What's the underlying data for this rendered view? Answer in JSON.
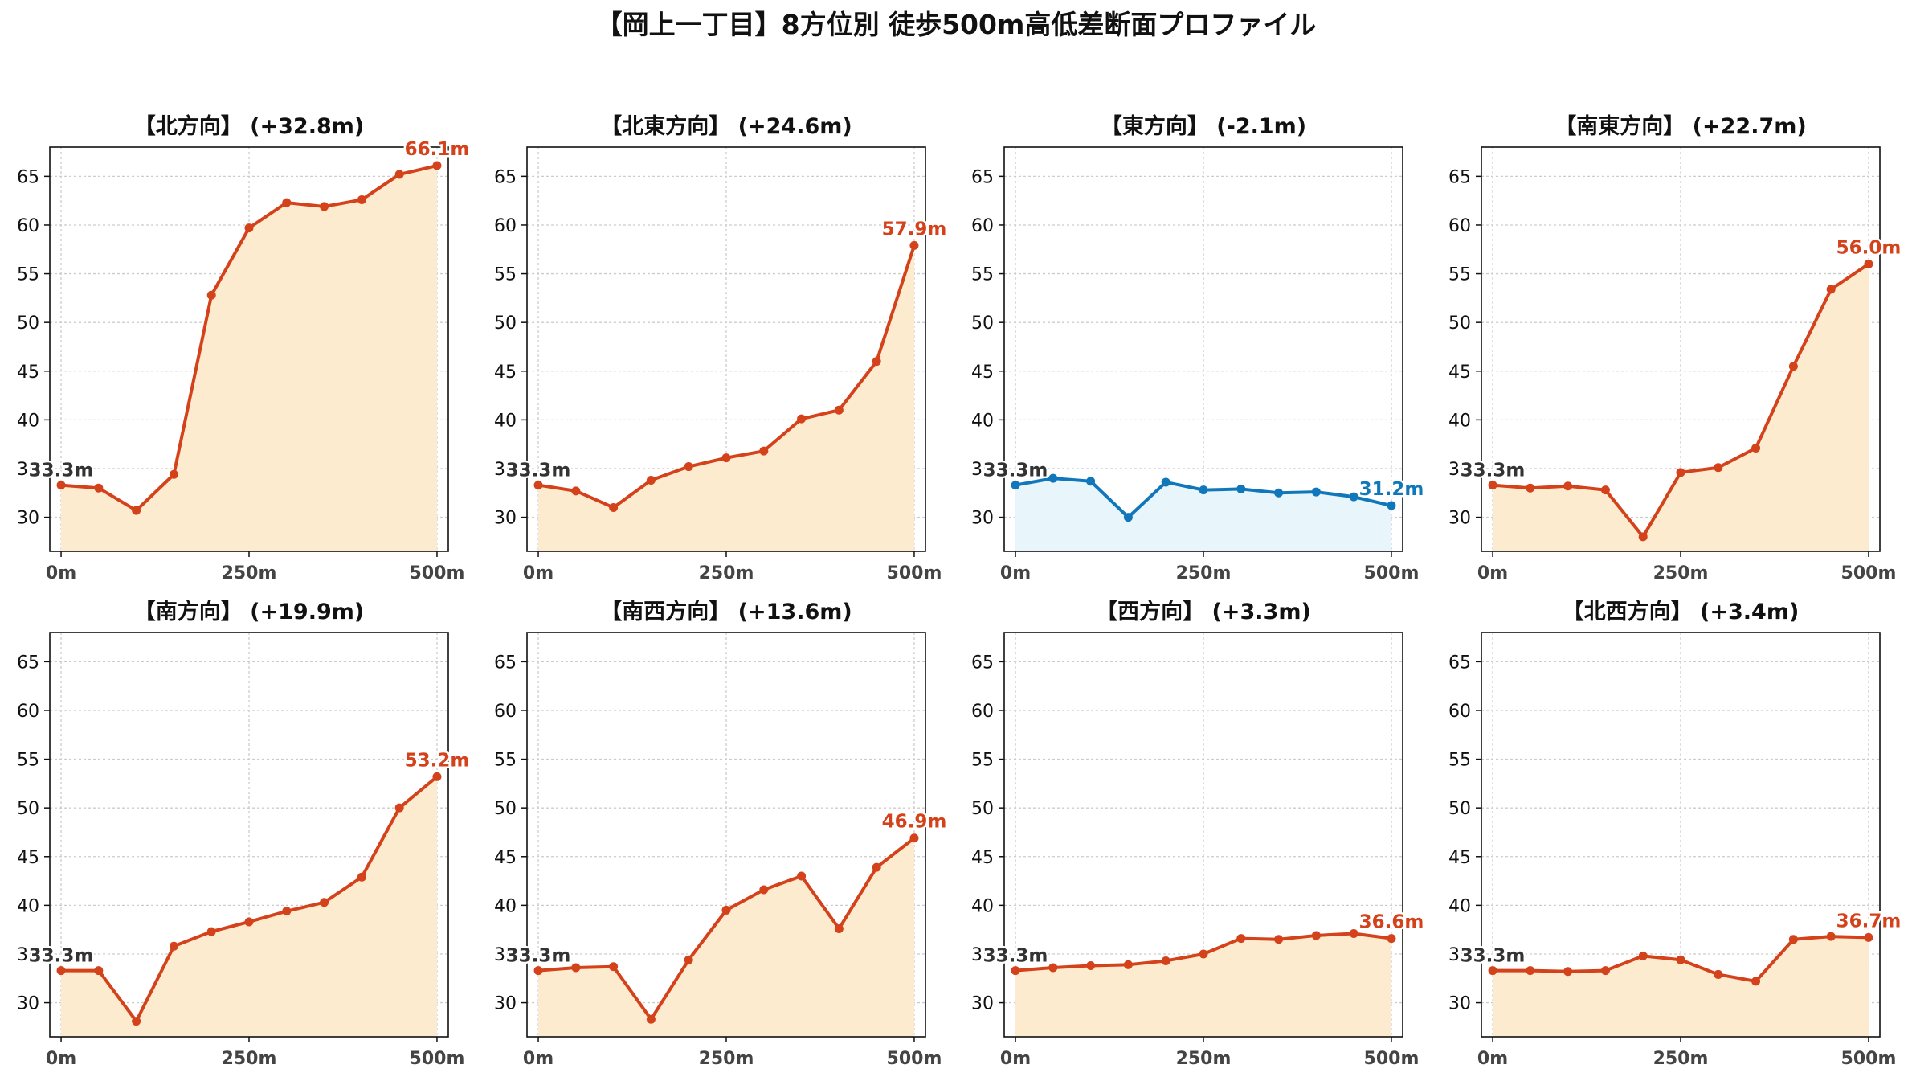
{
  "figure_title": "【岡上一丁目】8方位別 徒歩500m高低差断面プロファイル",
  "shared": {
    "x": [
      0,
      50,
      100,
      150,
      200,
      250,
      300,
      350,
      400,
      450,
      500
    ],
    "x_ticks": [
      0,
      250,
      500
    ],
    "x_tick_labels": [
      "0m",
      "250m",
      "500m"
    ],
    "y_ticks": [
      30,
      35,
      40,
      45,
      50,
      55,
      60,
      65
    ],
    "y_tick_labels": [
      "30",
      "35",
      "40",
      "45",
      "50",
      "55",
      "60",
      "65"
    ],
    "xlim": [
      -15,
      515
    ],
    "ylim": [
      26.5,
      68
    ],
    "grid": true,
    "colors": {
      "rise_line": "#d4421b",
      "rise_fill": "#fdebd0",
      "fall_line": "#1177bb",
      "fall_fill": "#e8f6fb",
      "start_label": "#333333",
      "grid": "#cccccc"
    }
  },
  "chart_data": [
    {
      "type": "area",
      "title": "【北方向】 (+32.8m)",
      "trend": "rise",
      "x": [
        0,
        50,
        100,
        150,
        200,
        250,
        300,
        350,
        400,
        450,
        500
      ],
      "values": [
        33.3,
        33.0,
        30.7,
        34.4,
        52.8,
        59.7,
        62.3,
        61.9,
        62.6,
        65.2,
        66.1
      ],
      "start_label": "33.3m",
      "end_label": "66.1m"
    },
    {
      "type": "area",
      "title": "【北東方向】 (+24.6m)",
      "trend": "rise",
      "x": [
        0,
        50,
        100,
        150,
        200,
        250,
        300,
        350,
        400,
        450,
        500
      ],
      "values": [
        33.3,
        32.7,
        31.0,
        33.8,
        35.2,
        36.1,
        36.8,
        40.1,
        41.0,
        46.0,
        57.9
      ],
      "start_label": "33.3m",
      "end_label": "57.9m"
    },
    {
      "type": "area",
      "title": "【東方向】 (-2.1m)",
      "trend": "fall",
      "x": [
        0,
        50,
        100,
        150,
        200,
        250,
        300,
        350,
        400,
        450,
        500
      ],
      "values": [
        33.3,
        34.0,
        33.7,
        30.0,
        33.6,
        32.8,
        32.9,
        32.5,
        32.6,
        32.1,
        31.2
      ],
      "start_label": "33.3m",
      "end_label": "31.2m"
    },
    {
      "type": "area",
      "title": "【南東方向】 (+22.7m)",
      "trend": "rise",
      "x": [
        0,
        50,
        100,
        150,
        200,
        250,
        300,
        350,
        400,
        450,
        500
      ],
      "values": [
        33.3,
        33.0,
        33.2,
        32.8,
        28.0,
        34.6,
        35.1,
        37.1,
        45.5,
        53.4,
        56.0
      ],
      "start_label": "33.3m",
      "end_label": "56.0m"
    },
    {
      "type": "area",
      "title": "【南方向】 (+19.9m)",
      "trend": "rise",
      "x": [
        0,
        50,
        100,
        150,
        200,
        250,
        300,
        350,
        400,
        450,
        500
      ],
      "values": [
        33.3,
        33.3,
        28.1,
        35.8,
        37.3,
        38.3,
        39.4,
        40.3,
        42.9,
        50.0,
        53.2
      ],
      "start_label": "33.3m",
      "end_label": "53.2m"
    },
    {
      "type": "area",
      "title": "【南西方向】 (+13.6m)",
      "trend": "rise",
      "x": [
        0,
        50,
        100,
        150,
        200,
        250,
        300,
        350,
        400,
        450,
        500
      ],
      "values": [
        33.3,
        33.6,
        33.7,
        28.3,
        34.4,
        39.5,
        41.6,
        43.0,
        37.6,
        43.9,
        46.9
      ],
      "start_label": "33.3m",
      "end_label": "46.9m"
    },
    {
      "type": "area",
      "title": "【西方向】 (+3.3m)",
      "trend": "rise",
      "x": [
        0,
        50,
        100,
        150,
        200,
        250,
        300,
        350,
        400,
        450,
        500
      ],
      "values": [
        33.3,
        33.6,
        33.8,
        33.9,
        34.3,
        35.0,
        36.6,
        36.5,
        36.9,
        37.1,
        36.6
      ],
      "start_label": "33.3m",
      "end_label": "36.6m"
    },
    {
      "type": "area",
      "title": "【北西方向】 (+3.4m)",
      "trend": "rise",
      "x": [
        0,
        50,
        100,
        150,
        200,
        250,
        300,
        350,
        400,
        450,
        500
      ],
      "values": [
        33.3,
        33.3,
        33.2,
        33.3,
        34.8,
        34.4,
        32.9,
        32.2,
        36.5,
        36.8,
        36.7
      ],
      "start_label": "33.3m",
      "end_label": "36.7m"
    }
  ]
}
